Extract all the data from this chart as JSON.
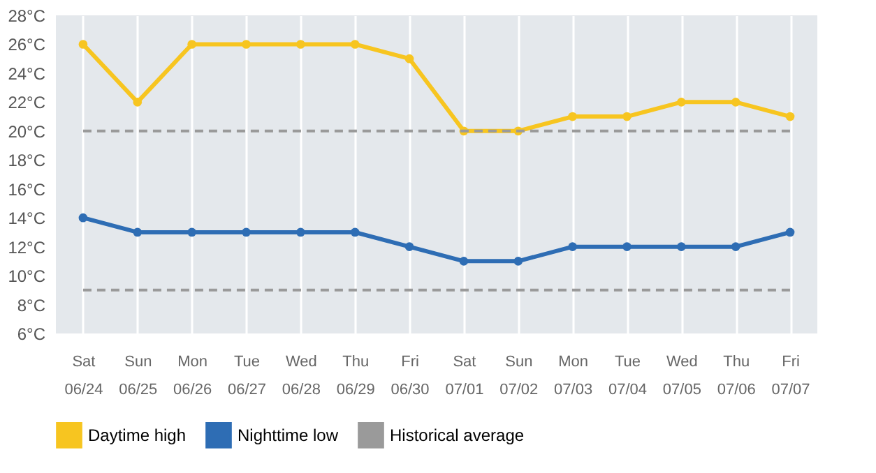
{
  "chart_data": {
    "type": "line",
    "categories": [
      "Sat 06/24",
      "Sun 06/25",
      "Mon 06/26",
      "Tue 06/27",
      "Wed 06/28",
      "Thu 06/29",
      "Fri 06/30",
      "Sat 07/01",
      "Sun 07/02",
      "Mon 07/03",
      "Tue 07/04",
      "Wed 07/05",
      "Thu 07/06",
      "Fri 07/07"
    ],
    "series": [
      {
        "name": "Daytime high",
        "color": "#f7c520",
        "marker": "circle",
        "line_style": "solid",
        "values": [
          26,
          22,
          26,
          26,
          26,
          26,
          25,
          20,
          20,
          21,
          21,
          22,
          22,
          21
        ]
      },
      {
        "name": "Nighttime low",
        "color": "#2e6db4",
        "marker": "circle",
        "line_style": "solid",
        "values": [
          14,
          13,
          13,
          13,
          13,
          13,
          12,
          11,
          11,
          12,
          12,
          12,
          12,
          13
        ]
      },
      {
        "name": "Historical average",
        "color": "#9a9a9a",
        "marker": "none",
        "line_style": "dashed",
        "values": [
          20,
          20,
          20,
          20,
          20,
          20,
          20,
          20,
          20,
          20,
          20,
          20,
          20,
          20
        ]
      },
      {
        "color": "#9a9a9a",
        "marker": "none",
        "line_style": "dashed",
        "values": [
          9,
          9,
          9,
          9,
          9,
          9,
          9,
          9,
          9,
          9,
          9,
          9,
          9,
          9
        ]
      }
    ],
    "ylim": [
      6,
      28
    ],
    "yticks": [
      {
        "value": 6,
        "label": "6°C"
      },
      {
        "value": 8,
        "label": "8°C"
      },
      {
        "value": 10,
        "label": "10°C"
      },
      {
        "value": 12,
        "label": "12°C"
      },
      {
        "value": 14,
        "label": "14°C"
      },
      {
        "value": 16,
        "label": "16°C"
      },
      {
        "value": 18,
        "label": "18°C"
      },
      {
        "value": 20,
        "label": "20°C"
      },
      {
        "value": 22,
        "label": "22°C"
      },
      {
        "value": 24,
        "label": "24°C"
      },
      {
        "value": 26,
        "label": "26°C"
      },
      {
        "value": 28,
        "label": "28°C"
      }
    ],
    "grid": "x",
    "legend": "bottom"
  }
}
